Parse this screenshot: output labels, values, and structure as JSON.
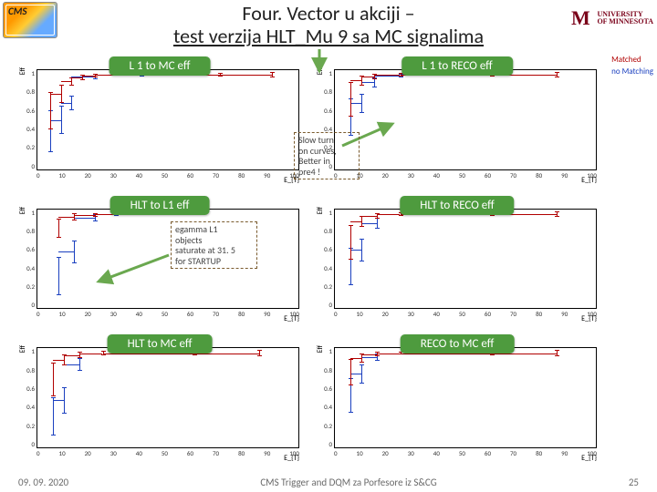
{
  "header": {
    "cms_label": "CMS",
    "title_line1": "Four. Vector u akciji –",
    "title_line2": "test verzija HLT_Mu 9 sa MC signalima",
    "univ_line1": "UNIVERSITY",
    "univ_line2": "OF MINNESOTA"
  },
  "legend": {
    "matched": "Matched",
    "nomatch": "no Matching"
  },
  "panels": {
    "p0": {
      "title": "L 1 to MC eff",
      "ylabel": "Eff",
      "xlabel": "E_{T}"
    },
    "p1": {
      "title": "L 1 to RECO eff",
      "ylabel": "Eff",
      "xlabel": "E_{T}"
    },
    "p2": {
      "title": "HLT to L1  eff",
      "ylabel": "Eff",
      "xlabel": "E_{T}"
    },
    "p3": {
      "title": "HLT to RECO eff",
      "ylabel": "Eff",
      "xlabel": "E_{T}"
    },
    "p4": {
      "title": "HLT to MC eff",
      "ylabel": "Eff",
      "xlabel": "E_{T}"
    },
    "p5": {
      "title": "RECO to MC eff",
      "ylabel": "Eff",
      "xlabel": "E_{T}"
    }
  },
  "notes": {
    "slow_turn": "Slow turn\non curves,\nBetter in\npre4 !",
    "egamma": "egamma L1\nobjects\nsaturate at 31. 5\nfor STARTUP"
  },
  "axes": {
    "xticks": [
      "0",
      "10",
      "20",
      "30",
      "40",
      "50",
      "60",
      "70",
      "80",
      "90",
      "100"
    ],
    "yticks": [
      "0",
      "0.2",
      "0.4",
      "0.6",
      "0.8",
      "1"
    ]
  },
  "colors": {
    "panel_green": "#4e9b3e",
    "red": "#b00000",
    "blue": "#1a3fbf",
    "note_border": "#7a5b2e",
    "arrow": "#6aa84f",
    "um": "#7a0019"
  },
  "chart": {
    "type": "scatter-with-errorbars",
    "xlim": [
      0,
      100
    ],
    "ylim": [
      0,
      1.05
    ],
    "series_colors": {
      "matched": "#b00000",
      "nomatch": "#1a3fbf"
    },
    "data": {
      "p0": {
        "matched": [
          {
            "x": 5,
            "y": 0.62,
            "err": 0.2
          },
          {
            "x": 9,
            "y": 0.8,
            "err": 0.1
          },
          {
            "x": 13,
            "y": 0.93,
            "err": 0.04
          },
          {
            "x": 17,
            "y": 0.97,
            "err": 0.03
          },
          {
            "x": 22,
            "y": 0.99,
            "err": 0.02
          },
          {
            "x": 30,
            "y": 1.0,
            "err": 0.01
          },
          {
            "x": 40,
            "y": 1.0,
            "err": 0.01
          },
          {
            "x": 55,
            "y": 1.0,
            "err": 0.01
          },
          {
            "x": 70,
            "y": 1.0,
            "err": 0.02
          },
          {
            "x": 90,
            "y": 1.0,
            "err": 0.03
          }
        ],
        "nomatch": [
          {
            "x": 5,
            "y": 0.4,
            "err": 0.22
          },
          {
            "x": 9,
            "y": 0.52,
            "err": 0.15
          },
          {
            "x": 13,
            "y": 0.7,
            "err": 0.08
          },
          {
            "x": 22,
            "y": 0.98,
            "err": 0.03
          },
          {
            "x": 40,
            "y": 1.0,
            "err": 0.02
          }
        ]
      },
      "p1": {
        "matched": [
          {
            "x": 6,
            "y": 0.74,
            "err": 0.18
          },
          {
            "x": 10,
            "y": 0.94,
            "err": 0.05
          },
          {
            "x": 15,
            "y": 0.98,
            "err": 0.03
          },
          {
            "x": 25,
            "y": 1.0,
            "err": 0.02
          },
          {
            "x": 40,
            "y": 1.0,
            "err": 0.01
          },
          {
            "x": 60,
            "y": 1.0,
            "err": 0.02
          },
          {
            "x": 85,
            "y": 1.0,
            "err": 0.03
          }
        ],
        "nomatch": [
          {
            "x": 6,
            "y": 0.55,
            "err": 0.2
          },
          {
            "x": 10,
            "y": 0.7,
            "err": 0.1
          },
          {
            "x": 15,
            "y": 0.92,
            "err": 0.05
          },
          {
            "x": 25,
            "y": 0.99,
            "err": 0.02
          }
        ]
      },
      "p2": {
        "matched": [
          {
            "x": 8,
            "y": 0.85,
            "err": 0.1
          },
          {
            "x": 14,
            "y": 0.97,
            "err": 0.04
          },
          {
            "x": 22,
            "y": 0.99,
            "err": 0.02
          },
          {
            "x": 30,
            "y": 1.0,
            "err": 0.01
          },
          {
            "x": 31.5,
            "y": 1.0,
            "err": 0.01
          }
        ],
        "nomatch": [
          {
            "x": 8,
            "y": 0.34,
            "err": 0.2
          },
          {
            "x": 14,
            "y": 0.6,
            "err": 0.12
          },
          {
            "x": 22,
            "y": 0.96,
            "err": 0.04
          },
          {
            "x": 30,
            "y": 1.0,
            "err": 0.02
          }
        ]
      },
      "p3": {
        "matched": [
          {
            "x": 6,
            "y": 0.7,
            "err": 0.18
          },
          {
            "x": 10,
            "y": 0.92,
            "err": 0.06
          },
          {
            "x": 16,
            "y": 0.98,
            "err": 0.03
          },
          {
            "x": 25,
            "y": 1.0,
            "err": 0.02
          },
          {
            "x": 40,
            "y": 1.0,
            "err": 0.01
          },
          {
            "x": 60,
            "y": 1.0,
            "err": 0.02
          },
          {
            "x": 85,
            "y": 1.0,
            "err": 0.03
          }
        ],
        "nomatch": [
          {
            "x": 6,
            "y": 0.44,
            "err": 0.2
          },
          {
            "x": 10,
            "y": 0.62,
            "err": 0.12
          },
          {
            "x": 16,
            "y": 0.9,
            "err": 0.06
          }
        ]
      },
      "p4": {
        "matched": [
          {
            "x": 6,
            "y": 0.72,
            "err": 0.18
          },
          {
            "x": 10,
            "y": 0.93,
            "err": 0.06
          },
          {
            "x": 16,
            "y": 0.98,
            "err": 0.03
          },
          {
            "x": 25,
            "y": 1.0,
            "err": 0.02
          },
          {
            "x": 40,
            "y": 1.0,
            "err": 0.01
          },
          {
            "x": 60,
            "y": 1.0,
            "err": 0.02
          },
          {
            "x": 85,
            "y": 1.0,
            "err": 0.03
          }
        ],
        "nomatch": [
          {
            "x": 6,
            "y": 0.33,
            "err": 0.2
          },
          {
            "x": 10,
            "y": 0.5,
            "err": 0.14
          },
          {
            "x": 16,
            "y": 0.88,
            "err": 0.07
          }
        ]
      },
      "p5": {
        "matched": [
          {
            "x": 6,
            "y": 0.8,
            "err": 0.14
          },
          {
            "x": 10,
            "y": 0.95,
            "err": 0.05
          },
          {
            "x": 16,
            "y": 0.99,
            "err": 0.02
          },
          {
            "x": 25,
            "y": 1.0,
            "err": 0.01
          },
          {
            "x": 40,
            "y": 1.0,
            "err": 0.01
          },
          {
            "x": 60,
            "y": 1.0,
            "err": 0.02
          },
          {
            "x": 85,
            "y": 1.0,
            "err": 0.03
          }
        ],
        "nomatch": [
          {
            "x": 6,
            "y": 0.55,
            "err": 0.18
          },
          {
            "x": 10,
            "y": 0.78,
            "err": 0.1
          },
          {
            "x": 16,
            "y": 0.96,
            "err": 0.04
          }
        ]
      }
    }
  },
  "footer": {
    "date": "09. 09. 2020",
    "center": "CMS Trigger and DQM za Porfesore iz S&CG",
    "page": "25"
  }
}
